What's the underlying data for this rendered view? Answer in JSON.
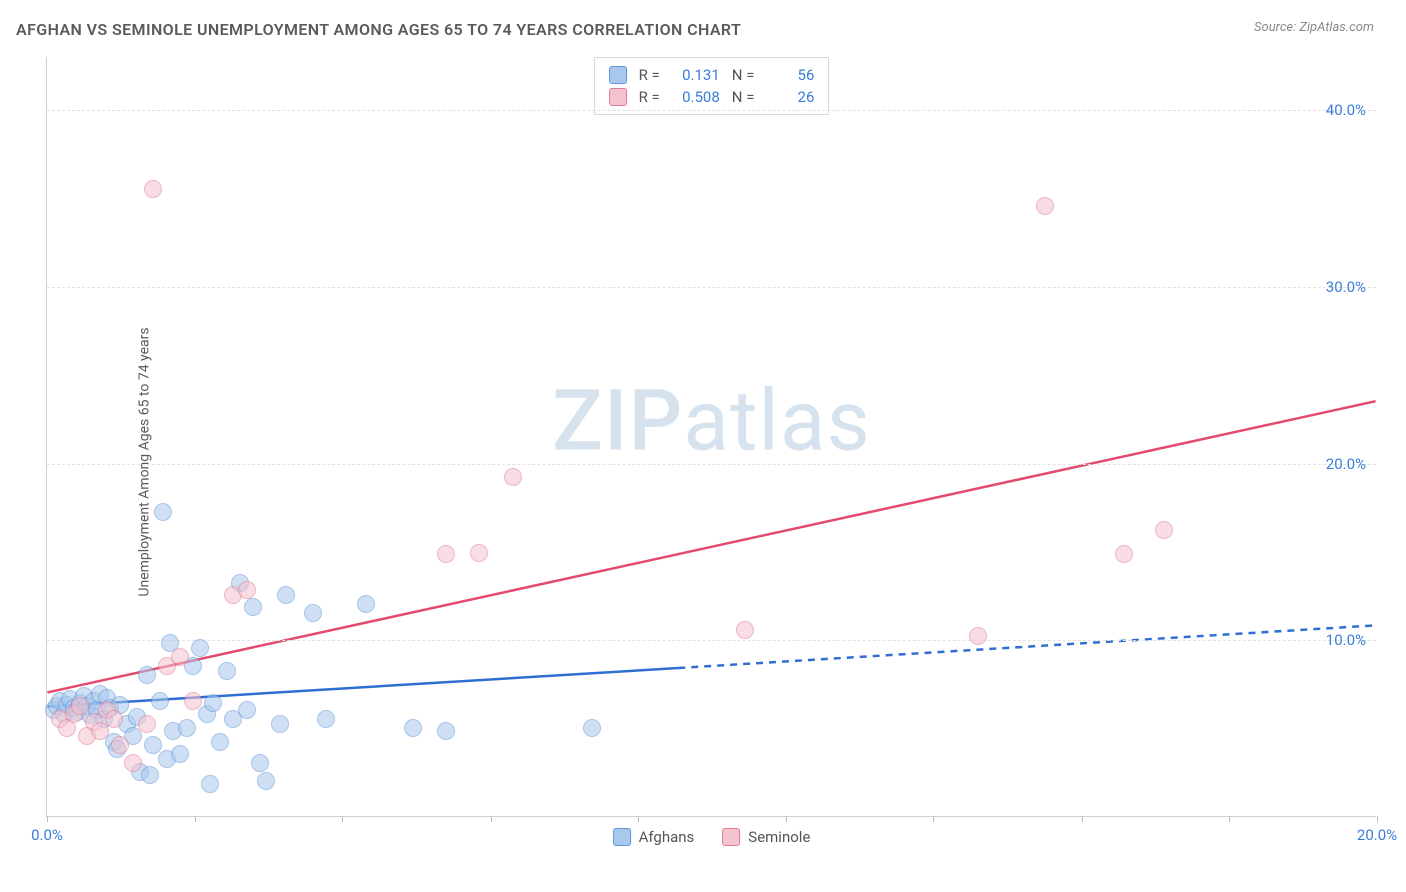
{
  "header": {
    "title": "AFGHAN VS SEMINOLE UNEMPLOYMENT AMONG AGES 65 TO 74 YEARS CORRELATION CHART",
    "source": "Source: ZipAtlas.com"
  },
  "watermark": {
    "part1": "ZIP",
    "part2": "atlas"
  },
  "chart": {
    "type": "scatter",
    "ylabel": "Unemployment Among Ages 65 to 74 years",
    "xlim": [
      0,
      20
    ],
    "ylim": [
      0,
      43
    ],
    "xtick_positions": [
      0,
      2.22,
      4.44,
      6.67,
      8.89,
      11.11,
      13.33,
      15.56,
      17.78,
      20
    ],
    "xtick_labels": {
      "0": "0.0%",
      "20": "20.0%"
    },
    "ytick_positions": [
      10,
      20,
      30,
      40
    ],
    "ytick_labels": [
      "10.0%",
      "20.0%",
      "30.0%",
      "40.0%"
    ],
    "grid_color": "#e2e2e2",
    "background_color": "#ffffff",
    "marker_radius": 9,
    "marker_opacity": 0.55,
    "series": {
      "afghans": {
        "label": "Afghans",
        "fill_color": "#a9c8ed",
        "stroke_color": "#5f95d6",
        "trend_color": "#2e6fd1",
        "trend_solid_until_x": 9.5,
        "trend": {
          "x1": 0,
          "y1": 6.2,
          "x2": 20,
          "y2": 10.8
        },
        "R": "0.131",
        "N": "56",
        "points": [
          [
            0.1,
            6.0
          ],
          [
            0.15,
            6.2
          ],
          [
            0.2,
            6.5
          ],
          [
            0.25,
            5.8
          ],
          [
            0.3,
            6.3
          ],
          [
            0.35,
            6.6
          ],
          [
            0.4,
            6.1
          ],
          [
            0.45,
            5.9
          ],
          [
            0.5,
            6.4
          ],
          [
            0.55,
            6.8
          ],
          [
            0.6,
            6.2
          ],
          [
            0.65,
            5.7
          ],
          [
            0.7,
            6.5
          ],
          [
            0.75,
            6.0
          ],
          [
            0.8,
            6.9
          ],
          [
            0.85,
            5.5
          ],
          [
            0.9,
            6.7
          ],
          [
            0.95,
            6.1
          ],
          [
            1.0,
            4.2
          ],
          [
            1.05,
            3.8
          ],
          [
            1.1,
            6.3
          ],
          [
            1.2,
            5.2
          ],
          [
            1.3,
            4.5
          ],
          [
            1.35,
            5.6
          ],
          [
            1.4,
            2.5
          ],
          [
            1.5,
            8.0
          ],
          [
            1.55,
            2.3
          ],
          [
            1.6,
            4.0
          ],
          [
            1.7,
            6.5
          ],
          [
            1.75,
            17.2
          ],
          [
            1.8,
            3.2
          ],
          [
            1.85,
            9.8
          ],
          [
            1.9,
            4.8
          ],
          [
            2.0,
            3.5
          ],
          [
            2.1,
            5.0
          ],
          [
            2.2,
            8.5
          ],
          [
            2.3,
            9.5
          ],
          [
            2.4,
            5.8
          ],
          [
            2.45,
            1.8
          ],
          [
            2.5,
            6.4
          ],
          [
            2.6,
            4.2
          ],
          [
            2.7,
            8.2
          ],
          [
            2.8,
            5.5
          ],
          [
            2.9,
            13.2
          ],
          [
            3.0,
            6.0
          ],
          [
            3.1,
            11.8
          ],
          [
            3.2,
            3.0
          ],
          [
            3.3,
            2.0
          ],
          [
            3.5,
            5.2
          ],
          [
            3.6,
            12.5
          ],
          [
            4.0,
            11.5
          ],
          [
            4.2,
            5.5
          ],
          [
            4.8,
            12.0
          ],
          [
            5.5,
            5.0
          ],
          [
            6.0,
            4.8
          ],
          [
            8.2,
            5.0
          ]
        ]
      },
      "seminole": {
        "label": "Seminole",
        "fill_color": "#f4c3ce",
        "stroke_color": "#e37a93",
        "trend_color": "#e34b6e",
        "trend": {
          "x1": 0,
          "y1": 7.0,
          "x2": 20,
          "y2": 23.5
        },
        "R": "0.508",
        "N": "26",
        "points": [
          [
            0.2,
            5.5
          ],
          [
            0.3,
            5.0
          ],
          [
            0.4,
            5.8
          ],
          [
            0.5,
            6.2
          ],
          [
            0.6,
            4.5
          ],
          [
            0.7,
            5.3
          ],
          [
            0.8,
            4.8
          ],
          [
            0.9,
            6.0
          ],
          [
            1.0,
            5.5
          ],
          [
            1.1,
            4.0
          ],
          [
            1.3,
            3.0
          ],
          [
            1.5,
            5.2
          ],
          [
            1.6,
            35.5
          ],
          [
            1.8,
            8.5
          ],
          [
            2.0,
            9.0
          ],
          [
            2.2,
            6.5
          ],
          [
            2.8,
            12.5
          ],
          [
            3.0,
            12.8
          ],
          [
            6.0,
            14.8
          ],
          [
            6.5,
            14.9
          ],
          [
            7.0,
            19.2
          ],
          [
            10.5,
            10.5
          ],
          [
            14.0,
            10.2
          ],
          [
            15.0,
            34.5
          ],
          [
            16.2,
            14.8
          ],
          [
            16.8,
            16.2
          ]
        ]
      }
    },
    "legend_top_r_label": "R =",
    "legend_top_n_label": "N ="
  }
}
